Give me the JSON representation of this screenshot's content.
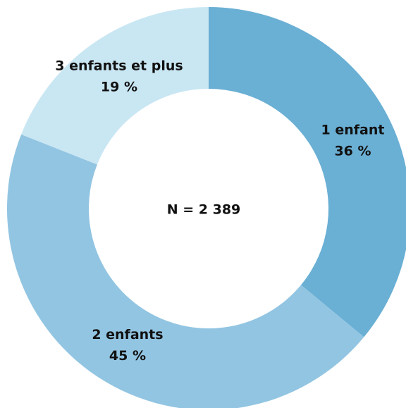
{
  "chart_data": {
    "type": "donut",
    "center_label": "N = 2 389",
    "categories": [
      "1 enfant",
      "2 enfants",
      "3 enfants et plus"
    ],
    "values": [
      36,
      45,
      19
    ],
    "value_labels": [
      "36 %",
      "45 %",
      "19 %"
    ],
    "colors": [
      "#6aafd4",
      "#92c5e2",
      "#c9e6f3"
    ]
  }
}
